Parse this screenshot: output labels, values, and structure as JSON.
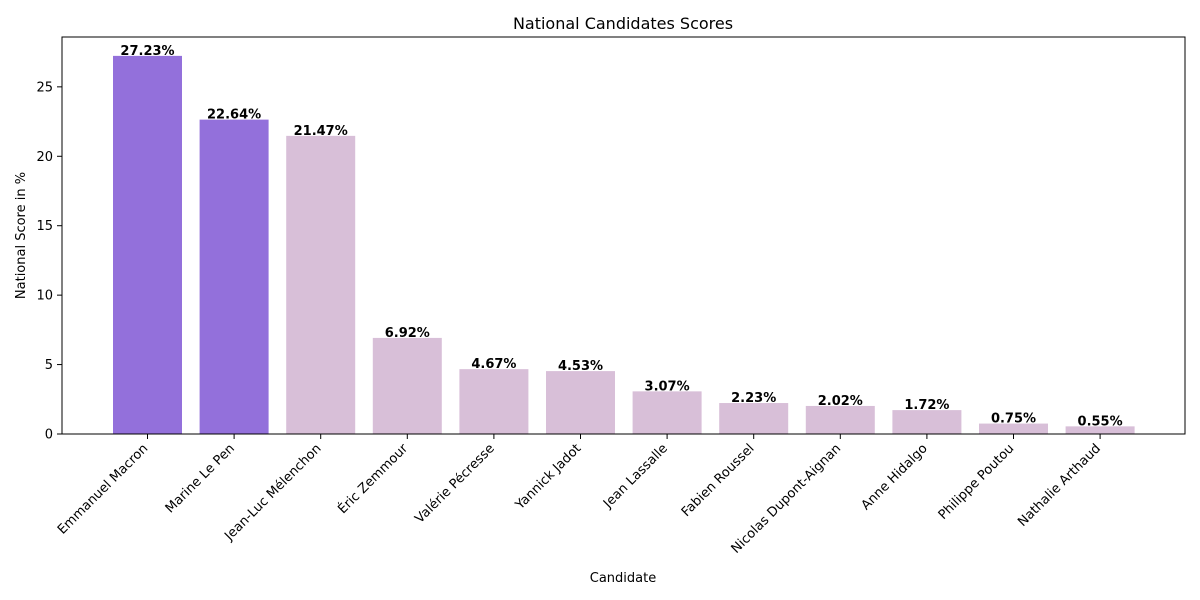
{
  "chart_data": {
    "type": "bar",
    "title": "National Candidates Scores",
    "xlabel": "Candidate",
    "ylabel": "National Score in %",
    "categories": [
      "Emmanuel Macron",
      "Marine Le Pen",
      "Jean-Luc Mélenchon",
      "Éric Zemmour",
      "Valérie Pécresse",
      "Yannick Jadot",
      "Jean Lassalle",
      "Fabien Roussel",
      "Nicolas Dupont-Aignan",
      "Anne Hidalgo",
      "Philippe Poutou",
      "Nathalie Arthaud"
    ],
    "values": [
      27.23,
      22.64,
      21.47,
      6.92,
      4.67,
      4.53,
      3.07,
      2.23,
      2.02,
      1.72,
      0.75,
      0.55
    ],
    "value_labels": [
      "27.23%",
      "22.64%",
      "21.47%",
      "6.92%",
      "4.67%",
      "4.53%",
      "3.07%",
      "2.23%",
      "2.02%",
      "1.72%",
      "0.75%",
      "0.55%"
    ],
    "ylim": [
      0,
      28.59
    ],
    "yticks": [
      0,
      5,
      10,
      15,
      20,
      25
    ],
    "ytick_labels": [
      "0",
      "5",
      "10",
      "15",
      "20",
      "25"
    ],
    "grid": false,
    "legend": "none",
    "colors": {
      "highlight": "#9370db",
      "default": "#d8bfd8",
      "axis": "#000000"
    },
    "highlighted_count": 2
  }
}
